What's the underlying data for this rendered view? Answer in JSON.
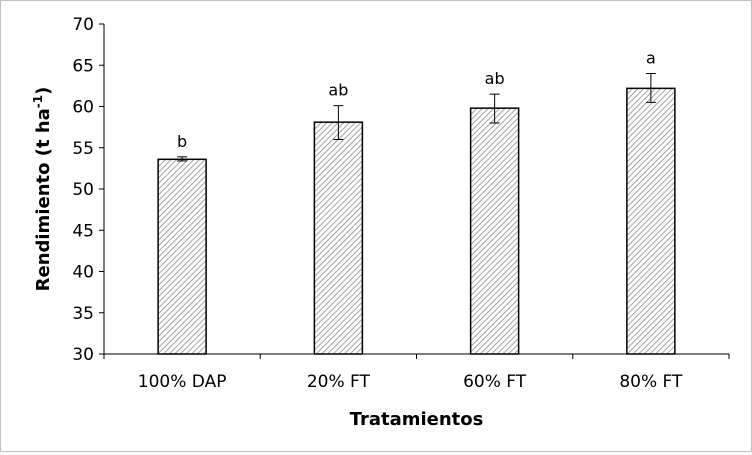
{
  "chart_data": {
    "type": "bar",
    "title": "",
    "xlabel": "Tratamientos",
    "ylabel": "Rendimiento (t ha",
    "ylabel_superscript": "-1",
    "ylabel_suffix": ")",
    "ylim": [
      30,
      70
    ],
    "yticks": [
      30,
      35,
      40,
      45,
      50,
      55,
      60,
      65,
      70
    ],
    "categories": [
      "100% DAP",
      "20% FT",
      "60% FT",
      "80% FT"
    ],
    "values": [
      53.6,
      58.1,
      59.8,
      62.2
    ],
    "error_low": [
      53.4,
      56.0,
      58.0,
      60.5
    ],
    "error_high": [
      53.9,
      60.1,
      61.5,
      64.0
    ],
    "significance_labels": [
      "b",
      "ab",
      "ab",
      "a"
    ],
    "bar_fill": "hatched",
    "grid": false,
    "legend": "none"
  },
  "colors": {
    "bar_outline": "#000000",
    "hatch": "#8c8c8c",
    "axis": "#000000",
    "frame": "#bfbfbf"
  }
}
